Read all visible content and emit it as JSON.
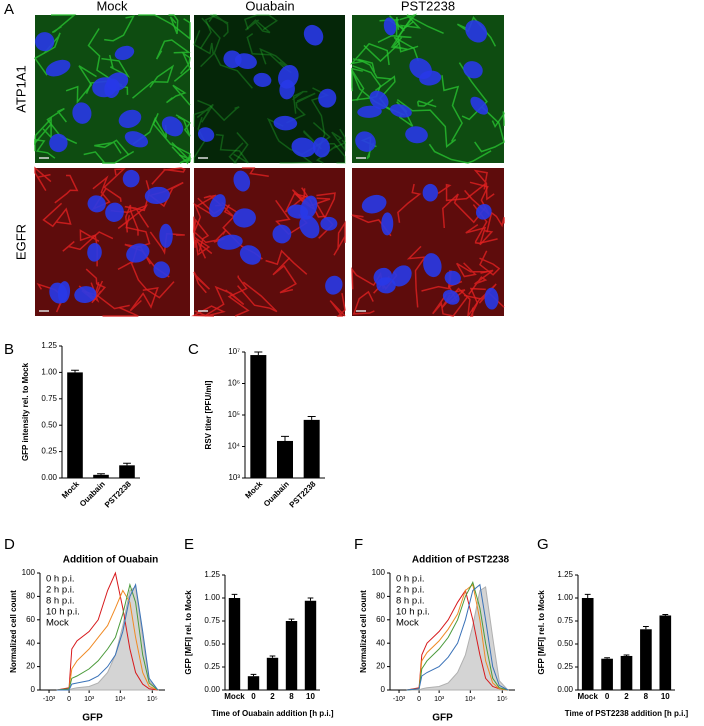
{
  "figure": {
    "panel_labels": [
      "A",
      "B",
      "C",
      "D",
      "E",
      "F",
      "G"
    ],
    "columns": [
      "Mock",
      "Ouabain",
      "PST2238"
    ],
    "rows": [
      "ATP1A1",
      "EGFR"
    ]
  },
  "chart_data": [
    {
      "type": "bar",
      "y_label": "GFP intensity rel. to Mock",
      "categories": [
        "Mock",
        "Ouabain",
        "PST2238"
      ],
      "values": [
        1.0,
        0.03,
        0.12
      ],
      "errors": [
        0.02,
        0.01,
        0.02
      ],
      "color": "#000000",
      "ylim": [
        0,
        1.25
      ],
      "yticks": [
        {
          "value": 0,
          "label": "0.00"
        },
        {
          "value": 0.25,
          "label": "0.25"
        },
        {
          "value": 0.5,
          "label": "0.50"
        },
        {
          "value": 0.75,
          "label": "0.75"
        },
        {
          "value": 1,
          "label": "1.00"
        },
        {
          "value": 1.25,
          "label": "1.25"
        }
      ]
    },
    {
      "type": "bar",
      "y_label": "RSV titer [PFU/ml]",
      "categories": [
        "Mock",
        "Ouabain",
        "PST2238"
      ],
      "values": [
        8000000,
        15000,
        70000
      ],
      "errors": [
        2000000,
        6000,
        20000
      ],
      "color": "#000000",
      "log_scale": true,
      "ylim": [
        1000,
        10000000
      ],
      "yticks": [
        {
          "value": 1000,
          "label": "10³"
        },
        {
          "value": 10000,
          "label": "10⁴"
        },
        {
          "value": 100000,
          "label": "10⁵"
        },
        {
          "value": 1000000,
          "label": "10⁶"
        },
        {
          "value": 10000000,
          "label": "10⁷"
        }
      ]
    },
    {
      "type": "line",
      "title": "Addition of Ouabain",
      "x_label": "GFP",
      "y_label": "Normalized cell count",
      "x_scale": "biexponential",
      "legend": "upper left",
      "x": [
        -500,
        0,
        100,
        300,
        1000,
        2000,
        4000,
        7000,
        12000,
        20000,
        30000,
        50000,
        80000,
        150000
      ],
      "series": [
        {
          "name": "0 h p.i.",
          "color": "#d7191c",
          "values": [
            0,
            2,
            35,
            42,
            50,
            60,
            85,
            100,
            70,
            35,
            15,
            5,
            1,
            0
          ]
        },
        {
          "name": "2 h p.i.",
          "color": "#f08a24",
          "values": [
            0,
            1,
            18,
            25,
            35,
            45,
            55,
            70,
            85,
            75,
            45,
            15,
            3,
            0
          ]
        },
        {
          "name": "8 h p.i.",
          "color": "#4a9a3a",
          "values": [
            0,
            1,
            10,
            12,
            18,
            25,
            35,
            45,
            65,
            90,
            75,
            30,
            6,
            0
          ]
        },
        {
          "name": "10 h p.i.",
          "color": "#3a72b8",
          "values": [
            0,
            0,
            5,
            6,
            8,
            12,
            20,
            30,
            50,
            80,
            90,
            50,
            10,
            0
          ]
        },
        {
          "name": "Mock",
          "color": "#b0b0b0",
          "fill": true,
          "values": [
            0,
            0,
            1,
            2,
            3,
            6,
            15,
            30,
            55,
            85,
            88,
            45,
            8,
            0
          ]
        }
      ],
      "xlim": [
        -2000,
        250000
      ],
      "ylim": [
        0,
        100
      ],
      "xticks": [
        {
          "value": -1000,
          "label": "-10³"
        },
        0,
        {
          "value": 1000,
          "label": "10³"
        },
        {
          "value": 10000,
          "label": "10⁴"
        },
        {
          "value": 100000,
          "label": "10⁵"
        }
      ],
      "yticks": [
        0,
        20,
        40,
        60,
        80,
        100
      ]
    },
    {
      "type": "bar",
      "y_label": "GFP [MFI] rel. to Mock",
      "x_label": "Time of Ouabain addition [h p.i.]",
      "categories": [
        "Mock",
        "0",
        "2",
        "8",
        "10"
      ],
      "values": [
        1.0,
        0.15,
        0.35,
        0.75,
        0.97
      ],
      "errors": [
        0.04,
        0.02,
        0.02,
        0.02,
        0.03
      ],
      "color": "#000000",
      "ylim": [
        0,
        1.25
      ],
      "yticks": [
        {
          "value": 0,
          "label": "0.00"
        },
        {
          "value": 0.25,
          "label": "0.25"
        },
        {
          "value": 0.5,
          "label": "0.50"
        },
        {
          "value": 0.75,
          "label": "0.75"
        },
        {
          "value": 1,
          "label": "1.00"
        },
        {
          "value": 1.25,
          "label": "1.25"
        }
      ]
    },
    {
      "type": "line",
      "title": "Addition of PST2238",
      "x_label": "GFP",
      "y_label": "Normalized cell count",
      "x_scale": "biexponential",
      "legend": "upper left",
      "x": [
        -500,
        0,
        100,
        300,
        1000,
        2000,
        4000,
        7000,
        12000,
        20000,
        30000,
        50000,
        80000,
        150000
      ],
      "series": [
        {
          "name": "0 h p.i.",
          "color": "#d7191c",
          "values": [
            0,
            2,
            30,
            40,
            50,
            60,
            75,
            85,
            60,
            30,
            10,
            3,
            1,
            0
          ]
        },
        {
          "name": "2 h p.i.",
          "color": "#f08a24",
          "values": [
            0,
            1,
            25,
            32,
            42,
            52,
            65,
            85,
            90,
            60,
            25,
            6,
            1,
            0
          ]
        },
        {
          "name": "8 h p.i.",
          "color": "#4a9a3a",
          "values": [
            0,
            1,
            18,
            25,
            35,
            45,
            60,
            80,
            92,
            70,
            40,
            10,
            2,
            0
          ]
        },
        {
          "name": "10 h p.i.",
          "color": "#3a72b8",
          "values": [
            0,
            1,
            12,
            15,
            20,
            28,
            40,
            60,
            85,
            90,
            60,
            20,
            4,
            0
          ]
        },
        {
          "name": "Mock",
          "color": "#b0b0b0",
          "fill": true,
          "values": [
            0,
            0,
            1,
            2,
            3,
            6,
            15,
            30,
            55,
            85,
            88,
            45,
            8,
            0
          ]
        }
      ],
      "xlim": [
        -2000,
        250000
      ],
      "ylim": [
        0,
        100
      ],
      "xticks": [
        {
          "value": -1000,
          "label": "-10³"
        },
        0,
        {
          "value": 1000,
          "label": "10³"
        },
        {
          "value": 10000,
          "label": "10⁴"
        },
        {
          "value": 100000,
          "label": "10⁵"
        }
      ],
      "yticks": [
        0,
        20,
        40,
        60,
        80,
        100
      ]
    },
    {
      "type": "bar",
      "y_label": "GFP [MFI] rel. to Mock",
      "x_label": "Time of PST2238 addition [h p.i.]",
      "categories": [
        "Mock",
        "0",
        "2",
        "8",
        "10"
      ],
      "values": [
        1.0,
        0.34,
        0.37,
        0.66,
        0.81
      ],
      "errors": [
        0.04,
        0.01,
        0.01,
        0.03,
        0.01
      ],
      "color": "#000000",
      "ylim": [
        0,
        1.25
      ],
      "yticks": [
        {
          "value": 0,
          "label": "0.00"
        },
        {
          "value": 0.25,
          "label": "0.25"
        },
        {
          "value": 0.5,
          "label": "0.50"
        },
        {
          "value": 0.75,
          "label": "0.75"
        },
        {
          "value": 1,
          "label": "1.00"
        },
        {
          "value": 1.25,
          "label": "1.25"
        }
      ]
    }
  ]
}
